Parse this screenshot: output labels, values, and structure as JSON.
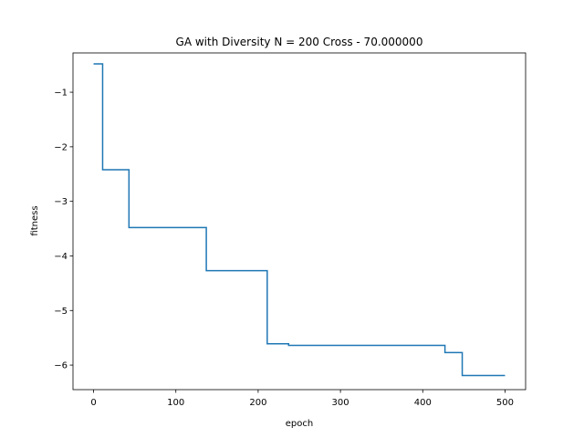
{
  "chart_data": {
    "type": "line",
    "title": "GA with Diversity N = 200 Cross - 70.000000",
    "xlabel": "epoch",
    "ylabel": "fitness",
    "xlim": [
      -25,
      525
    ],
    "ylim": [
      -6.45,
      -0.28
    ],
    "grid": false,
    "xticks": [
      0,
      100,
      200,
      300,
      400,
      500
    ],
    "xtick_labels": [
      "0",
      "100",
      "200",
      "300",
      "400",
      "500"
    ],
    "yticks": [
      -1,
      -2,
      -3,
      -4,
      -5,
      -6
    ],
    "ytick_labels": [
      "−1",
      "−2",
      "−3",
      "−4",
      "−5",
      "−6"
    ],
    "series": [
      {
        "color": "#1f77b4",
        "step": true,
        "x": [
          0,
          11,
          11,
          43,
          43,
          137,
          137,
          211,
          211,
          237,
          237,
          427,
          427,
          448,
          448,
          500
        ],
        "y": [
          -0.48,
          -0.48,
          -2.42,
          -2.42,
          -3.48,
          -3.48,
          -4.27,
          -4.27,
          -5.61,
          -5.61,
          -5.64,
          -5.64,
          -5.77,
          -5.77,
          -6.19,
          -6.19
        ]
      }
    ]
  }
}
